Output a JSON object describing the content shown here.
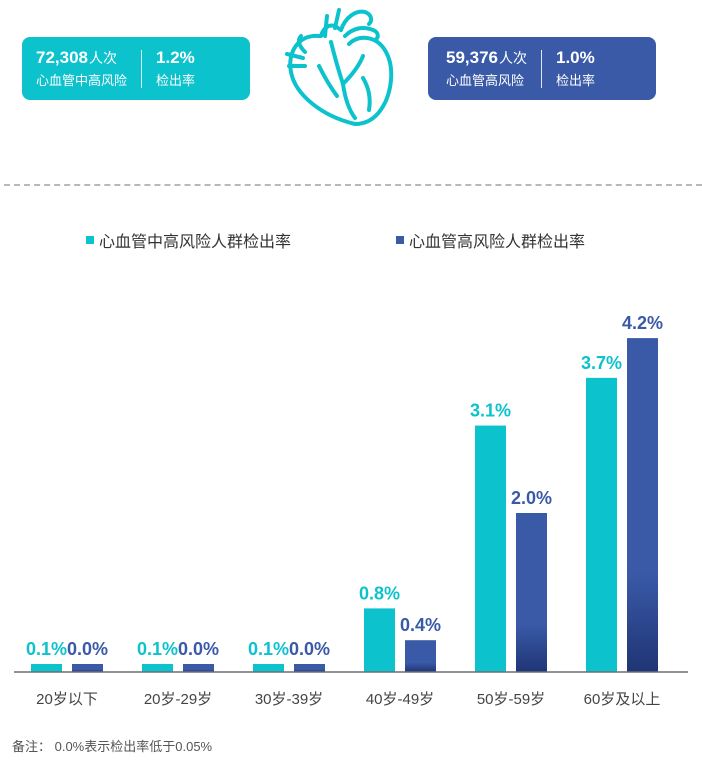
{
  "cards": [
    {
      "count": "72,308",
      "unit": "人次",
      "label": "心血管中高风险",
      "rate": "1.2%",
      "rate_label": "检出率"
    },
    {
      "count": "59,376",
      "unit": "人次",
      "label": "心血管高风险",
      "rate": "1.0%",
      "rate_label": "检出率"
    }
  ],
  "colors": {
    "teal": "#0cc2cd",
    "blue": "#3a5aa8",
    "blue_dark": "#1f3575"
  },
  "icons": {
    "heart": "heart-outline-icon"
  },
  "chart_data": {
    "type": "bar",
    "categories": [
      "20岁以下",
      "20岁-29岁",
      "30岁-39岁",
      "40岁-49岁",
      "50岁-59岁",
      "60岁及以上"
    ],
    "series": [
      {
        "name": "心血管中高风险人群检出率",
        "values": [
          0.1,
          0.1,
          0.1,
          0.8,
          3.1,
          3.7
        ],
        "labels": [
          "0.1%",
          "0.1%",
          "0.1%",
          "0.8%",
          "3.1%",
          "3.7%"
        ]
      },
      {
        "name": "心血管高风险人群检出率",
        "values": [
          0.0,
          0.0,
          0.0,
          0.4,
          2.0,
          4.2
        ],
        "labels": [
          "0.0%",
          "0.0%",
          "0.0%",
          "0.4%",
          "2.0%",
          "4.2%"
        ]
      }
    ],
    "ylim": [
      0,
      4.5
    ],
    "grid": false,
    "legend": "top"
  },
  "note": "备注： 0.0%表示检出率低于0.05%"
}
